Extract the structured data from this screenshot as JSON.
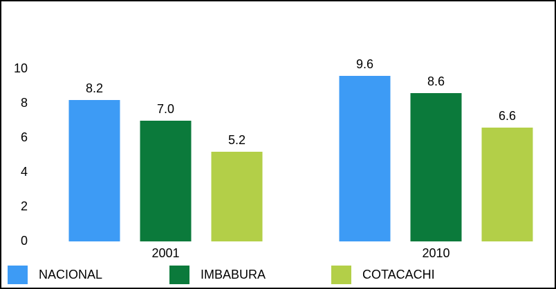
{
  "chart_data": {
    "type": "bar",
    "categories": [
      "2001",
      "2010"
    ],
    "series": [
      {
        "name": "NACIONAL",
        "color": "#3d9bf5",
        "values": [
          8.2,
          9.6
        ],
        "value_labels": [
          "8.2",
          "9.6"
        ]
      },
      {
        "name": "IMBABURA",
        "color": "#0b7a3b",
        "values": [
          7.0,
          8.6
        ],
        "value_labels": [
          "7.0",
          "8.6"
        ]
      },
      {
        "name": "COTACACHI",
        "color": "#b3cf48",
        "values": [
          5.2,
          6.6
        ],
        "value_labels": [
          "5.2",
          "6.6"
        ]
      }
    ],
    "ylim": [
      0,
      10
    ],
    "yticks": [
      0,
      2,
      4,
      6,
      8,
      10
    ],
    "grid": false,
    "legend": "bottom"
  }
}
